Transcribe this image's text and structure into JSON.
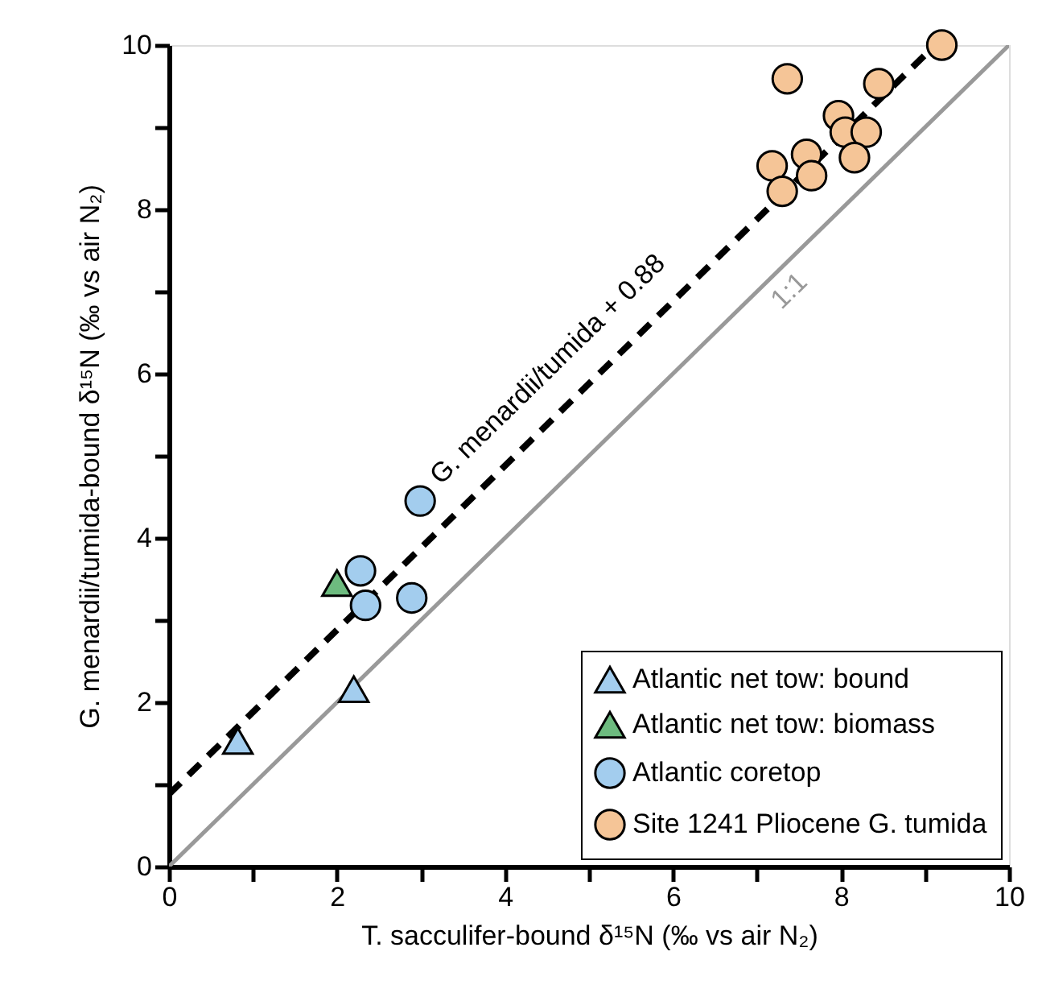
{
  "chart_data": {
    "type": "scatter",
    "xlabel": "T. sacculifer-bound δ¹⁵N (‰ vs air N₂)",
    "ylabel": "G. menardii/tumida-bound δ¹⁵N (‰ vs air N₂)",
    "xlim": [
      0,
      10
    ],
    "ylim": [
      0,
      10
    ],
    "xticks": [
      0,
      {
        "value": 1,
        "label": null
      },
      2,
      {
        "value": 3,
        "label": null
      },
      4,
      {
        "value": 5,
        "label": null
      },
      6,
      {
        "value": 7,
        "label": null
      },
      8,
      {
        "value": 9,
        "label": null
      },
      10
    ],
    "yticks": [
      0,
      {
        "value": 1,
        "label": null
      },
      2,
      {
        "value": 3,
        "label": null
      },
      4,
      {
        "value": 5,
        "label": null
      },
      6,
      {
        "value": 7,
        "label": null
      },
      8,
      {
        "value": 9,
        "label": null
      },
      10
    ],
    "grid": false,
    "legend": "bottom right",
    "series": [
      {
        "name": "Atlantic net tow: bound",
        "color": "#a3cdee",
        "marker": "triangle",
        "x": [
          0.82,
          2.2
        ],
        "values": [
          1.53,
          2.16
        ]
      },
      {
        "name": "Atlantic net tow: biomass",
        "color": "#6dbb7f",
        "marker": "triangle",
        "x": [
          2.0
        ],
        "values": [
          3.45
        ]
      },
      {
        "name": "Atlantic coretop",
        "color": "#a3cdee",
        "marker": "circle",
        "x": [
          2.99,
          2.28,
          2.34,
          2.89
        ],
        "values": [
          4.45,
          3.6,
          3.18,
          3.27
        ]
      },
      {
        "name": "Site 1241 Pliocene G. tumida",
        "color": "#f5c597",
        "marker": "circle",
        "x": [
          7.36,
          9.2,
          8.45,
          7.97,
          8.05,
          8.3,
          8.16,
          7.59,
          7.65,
          7.18,
          7.3
        ],
        "values": [
          9.59,
          10.0,
          9.53,
          9.14,
          8.94,
          8.94,
          8.63,
          8.67,
          8.41,
          8.53,
          8.22
        ]
      },
      {
        "type": "line",
        "color": "#000000",
        "line_style": "dashed",
        "x": [
          0,
          9.12
        ],
        "values": [
          0.88,
          10.0
        ]
      },
      {
        "type": "line",
        "color": "#999999",
        "line_style": "solid",
        "x": [
          0,
          10
        ],
        "values": [
          0,
          10
        ]
      }
    ],
    "annotations": [
      "G. menardii/tumida + 0.88",
      "1:1"
    ]
  }
}
